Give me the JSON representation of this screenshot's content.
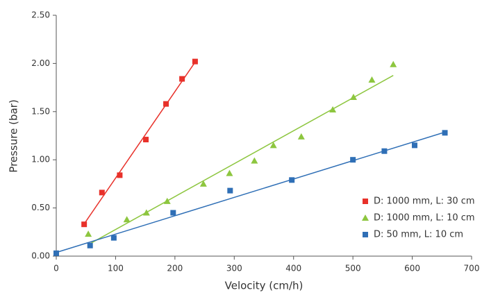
{
  "chart_data": {
    "type": "scatter",
    "x_label": "Velocity (cm/h)",
    "y_label": "Pressure (bar)",
    "xlim": [
      0,
      700
    ],
    "xticks": [
      0,
      100,
      200,
      300,
      400,
      500,
      600,
      700
    ],
    "ylim": [
      0,
      2.5
    ],
    "yticks": [
      {
        "value": 0,
        "label": "0.00"
      },
      {
        "value": 0.5,
        "label": "0.50"
      },
      {
        "value": 1,
        "label": "1.00"
      },
      {
        "value": 1.5,
        "label": "1.50"
      },
      {
        "value": 2,
        "label": "2.00"
      },
      {
        "value": 2.5,
        "label": "2.50"
      }
    ],
    "grid": false,
    "trendline": true,
    "legend": "lower right",
    "series": [
      {
        "name": "D: 1000 mm, L: 30 cm",
        "color": "#e8312a",
        "marker": "square",
        "x": [
          47,
          77,
          107,
          151,
          185,
          212,
          234
        ],
        "values": [
          0.33,
          0.66,
          0.84,
          1.21,
          1.58,
          1.84,
          2.02
        ]
      },
      {
        "name": "D: 1000 mm, L: 10 cm",
        "color": "#8dc63f",
        "marker": "triangle",
        "x": [
          54,
          119,
          152,
          187,
          248,
          292,
          334,
          366,
          413,
          466,
          501,
          532,
          568
        ],
        "values": [
          0.23,
          0.38,
          0.45,
          0.57,
          0.75,
          0.86,
          0.99,
          1.15,
          1.24,
          1.52,
          1.65,
          1.83,
          1.99
        ]
      },
      {
        "name": "D: 50 mm, L: 10 cm",
        "color": "#2f6fb6",
        "marker": "square",
        "x": [
          0,
          57,
          97,
          197,
          293,
          397,
          500,
          553,
          604,
          655
        ],
        "values": [
          0.03,
          0.11,
          0.19,
          0.45,
          0.68,
          0.79,
          1.0,
          1.09,
          1.15,
          1.28
        ]
      }
    ]
  }
}
